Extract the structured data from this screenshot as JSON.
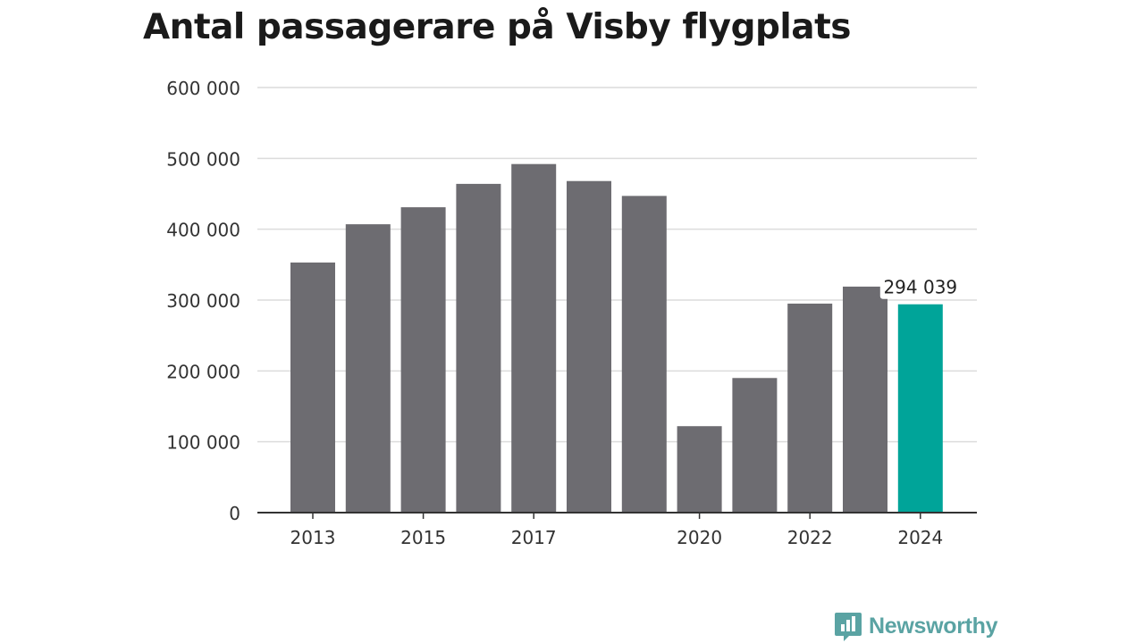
{
  "chart_data": {
    "type": "bar",
    "title": "Antal passagerare på Visby flygplats",
    "categories": [
      "2013",
      "2014",
      "2015",
      "2016",
      "2017",
      "2018",
      "2019",
      "2020",
      "2021",
      "2022",
      "2023",
      "2024"
    ],
    "values": [
      353000,
      407000,
      431000,
      464000,
      492000,
      468000,
      447000,
      122000,
      190000,
      295000,
      319000,
      294039
    ],
    "x_tick_labels": [
      "2013",
      "2015",
      "2017",
      "2020",
      "2022",
      "2024"
    ],
    "y_tick_labels": [
      "0",
      "100 000",
      "200 000",
      "300 000",
      "400 000",
      "500 000",
      "600 000"
    ],
    "ylim": [
      0,
      600000
    ],
    "grid": true,
    "bar_color": "#6d6c71",
    "highlight_color": "#00a499",
    "highlight_index": 11,
    "annotation": "294 039",
    "xlabel": "",
    "ylabel": ""
  },
  "brand": {
    "name": "Newsworthy",
    "color": "#5aa3a3"
  }
}
